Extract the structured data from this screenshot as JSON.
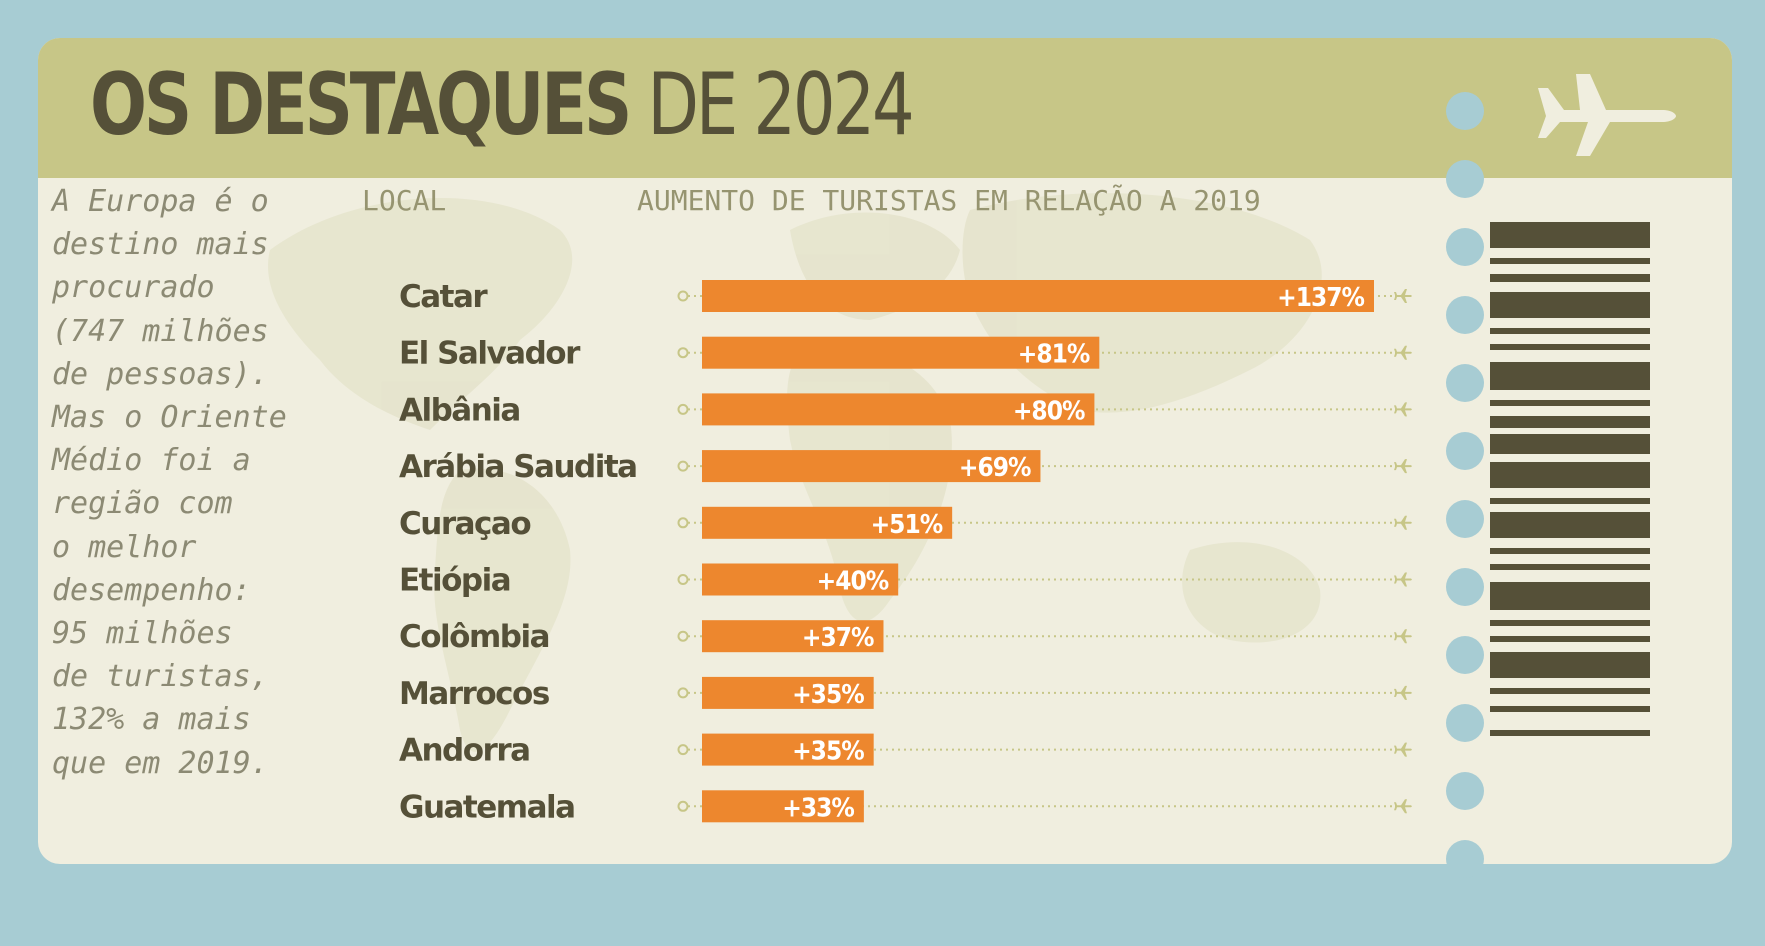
{
  "header": {
    "title_bold": "OS DESTAQUES",
    "title_light": " DE 2024",
    "icon": "airplane-icon"
  },
  "intro_text": "A Europa é o\ndestino mais\nprocurado\n(747 milhões\nde pessoas).\nMas o Oriente\nMédio foi a\nregião com\no melhor\ndesempenho:\n95 milhões\nde turistas,\n132% a mais\nque em 2019.",
  "colors": {
    "background": "#a7ccd3",
    "header": "#c7c687",
    "ticket": "#f0eedf",
    "bar": "#ed872e",
    "text_dark": "#555038",
    "dotted_line": "#c7c687"
  },
  "chart_data": {
    "type": "bar",
    "orientation": "horizontal",
    "category_header": "LOCAL",
    "value_header": "AUMENTO DE TURISTAS EM RELAÇÃO A 2019",
    "categories": [
      "Catar",
      "El Salvador",
      "Albânia",
      "Arábia Saudita",
      "Curaçao",
      "Etiópia",
      "Colômbia",
      "Marrocos",
      "Andorra",
      "Guatemala"
    ],
    "values": [
      137,
      81,
      80,
      69,
      51,
      40,
      37,
      35,
      35,
      33
    ],
    "labels": [
      "+137%",
      "+81%",
      "+80%",
      "+69%",
      "+51%",
      "+40%",
      "+37%",
      "+35%",
      "+35%",
      "+33%"
    ],
    "unit": "%",
    "xlim": [
      0,
      137
    ]
  }
}
